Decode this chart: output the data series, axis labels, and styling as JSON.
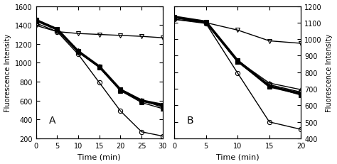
{
  "panel_A": {
    "xlabel": "Time (min)",
    "ylabel": "Fluorescence Intensity",
    "label": "A",
    "xlim": [
      0,
      30
    ],
    "ylim": [
      200,
      1600
    ],
    "yticks": [
      200,
      400,
      600,
      800,
      1000,
      1200,
      1400,
      1600
    ],
    "xticks": [
      0,
      5,
      10,
      15,
      20,
      25,
      30
    ],
    "series": [
      {
        "x": [
          0,
          5,
          10,
          15,
          20,
          25,
          30
        ],
        "y": [
          1395,
          1330,
          1310,
          1300,
          1290,
          1280,
          1265
        ],
        "marker": "v",
        "color": "black",
        "fillstyle": "none",
        "lw": 1.0,
        "ms": 4.5,
        "zorder": 3
      },
      {
        "x": [
          0,
          5,
          10,
          15,
          20,
          25,
          30
        ],
        "y": [
          1450,
          1355,
          1120,
          960,
          715,
          600,
          555
        ],
        "marker": "s",
        "color": "black",
        "fillstyle": "full",
        "lw": 2.5,
        "ms": 5,
        "zorder": 4
      },
      {
        "x": [
          0,
          5,
          10,
          15,
          20,
          25,
          30
        ],
        "y": [
          1455,
          1350,
          1125,
          960,
          710,
          595,
          545
        ],
        "marker": "s",
        "color": "black",
        "fillstyle": "none",
        "lw": 1.0,
        "ms": 4.5,
        "zorder": 3
      },
      {
        "x": [
          0,
          5,
          10,
          15,
          20,
          25,
          30
        ],
        "y": [
          1460,
          1360,
          1130,
          965,
          718,
          605,
          530
        ],
        "marker": "^",
        "color": "black",
        "fillstyle": "none",
        "lw": 1.0,
        "ms": 4.5,
        "zorder": 3
      },
      {
        "x": [
          0,
          5,
          10,
          15,
          20,
          25,
          30
        ],
        "y": [
          1450,
          1348,
          1118,
          950,
          705,
          580,
          515
        ],
        "marker": "^",
        "color": "black",
        "fillstyle": "full",
        "lw": 1.0,
        "ms": 4.5,
        "zorder": 3
      },
      {
        "x": [
          0,
          5,
          10,
          15,
          20,
          25,
          30
        ],
        "y": [
          1420,
          1330,
          1090,
          790,
          490,
          270,
          225
        ],
        "marker": "o",
        "color": "black",
        "fillstyle": "none",
        "lw": 1.0,
        "ms": 4.5,
        "zorder": 3
      }
    ]
  },
  "panel_B": {
    "xlabel": "Time (min)",
    "ylabel": "Fluorescence Intensity",
    "label": "B",
    "xlim": [
      0,
      20
    ],
    "ylim": [
      400,
      1200
    ],
    "yticks": [
      400,
      500,
      600,
      700,
      800,
      900,
      1000,
      1100,
      1200
    ],
    "xticks": [
      0,
      5,
      10,
      15,
      20
    ],
    "series": [
      {
        "x": [
          0,
          5,
          10,
          15,
          20
        ],
        "y": [
          1120,
          1100,
          1055,
          990,
          975
        ],
        "marker": "v",
        "color": "black",
        "fillstyle": "none",
        "lw": 1.0,
        "ms": 4.5,
        "zorder": 3
      },
      {
        "x": [
          0,
          5,
          10,
          15,
          20
        ],
        "y": [
          1135,
          1105,
          870,
          715,
          670
        ],
        "marker": "s",
        "color": "black",
        "fillstyle": "full",
        "lw": 2.5,
        "ms": 5,
        "zorder": 4
      },
      {
        "x": [
          0,
          5,
          10,
          15,
          20
        ],
        "y": [
          1130,
          1100,
          865,
          725,
          680
        ],
        "marker": "s",
        "color": "black",
        "fillstyle": "none",
        "lw": 1.0,
        "ms": 4.5,
        "zorder": 3
      },
      {
        "x": [
          0,
          5,
          10,
          15,
          20
        ],
        "y": [
          1135,
          1105,
          870,
          735,
          695
        ],
        "marker": "^",
        "color": "black",
        "fillstyle": "none",
        "lw": 1.0,
        "ms": 4.5,
        "zorder": 3
      },
      {
        "x": [
          0,
          5,
          10,
          15,
          20
        ],
        "y": [
          1130,
          1100,
          862,
          718,
          662
        ],
        "marker": "^",
        "color": "black",
        "fillstyle": "full",
        "lw": 1.0,
        "ms": 4.5,
        "zorder": 3
      },
      {
        "x": [
          0,
          5,
          10,
          15,
          20
        ],
        "y": [
          1120,
          1095,
          795,
          500,
          455
        ],
        "marker": "o",
        "color": "black",
        "fillstyle": "none",
        "lw": 1.0,
        "ms": 4.5,
        "zorder": 3
      }
    ]
  },
  "background_color": "#ffffff",
  "fig_width": 4.74,
  "fig_height": 2.32
}
